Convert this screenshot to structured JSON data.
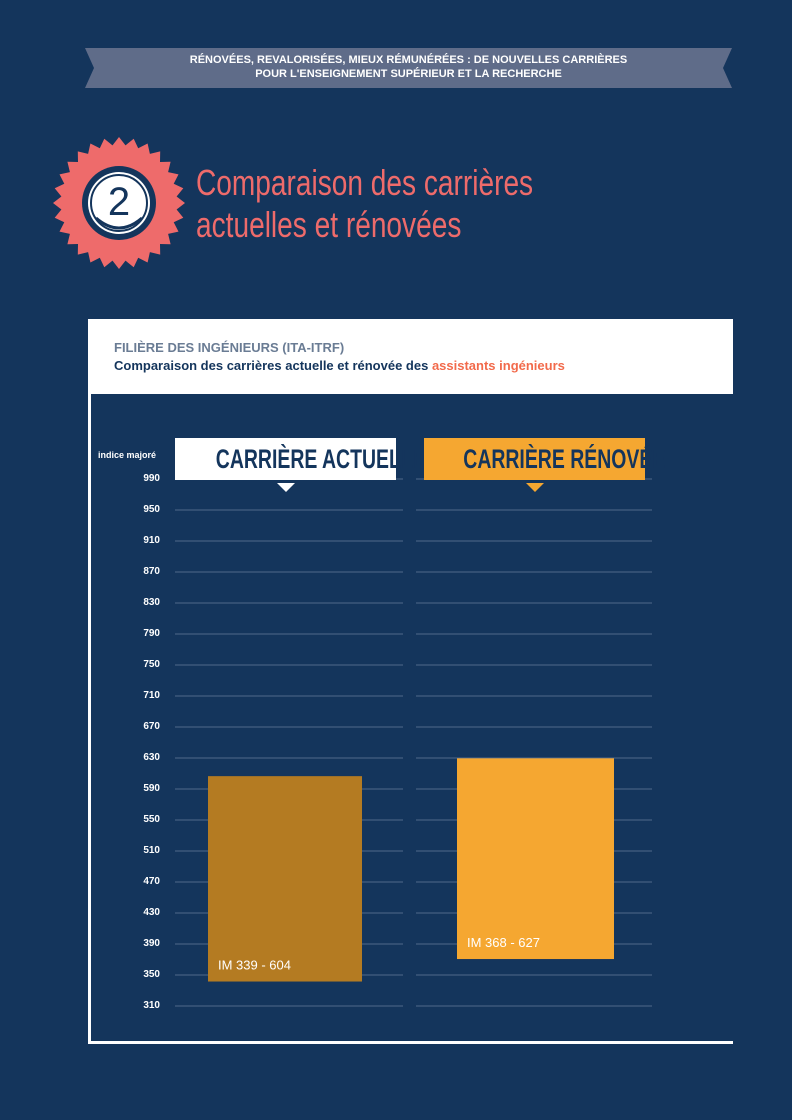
{
  "header": {
    "ribbon_line1": "RÉNOVÉES, REVALORISÉES, MIEUX RÉMUNÉRÉES : DE NOUVELLES CARRIÈRES",
    "ribbon_line2": "POUR L'ENSEIGNEMENT SUPÉRIEUR ET LA RECHERCHE"
  },
  "section": {
    "number": "2",
    "title_line1": "Comparaison des carrières",
    "title_line2": "actuelles et rénovées"
  },
  "card": {
    "subtitle": "FILIÈRE DES INGÉNIEURS (ITA-ITRF)",
    "description_prefix": "Comparaison des carrières actuelle et rénovée des ",
    "description_highlight": "assistants ingénieurs"
  },
  "colors": {
    "background": "#14355c",
    "ribbon": "#5f6c89",
    "accent_red": "#ee6b6b",
    "bar_actuelle": "#b47b22",
    "bar_renovee": "#f5a731",
    "highlight": "#f26a4b"
  },
  "chart_data": {
    "type": "bar",
    "ylabel": "indice majoré",
    "ylim": [
      310,
      990
    ],
    "yticks": [
      990,
      950,
      910,
      870,
      830,
      790,
      750,
      710,
      670,
      630,
      590,
      550,
      510,
      470,
      430,
      390,
      350,
      310
    ],
    "grid": true,
    "categories": [
      "CARRIÈRE ACTUELLE",
      "CARRIÈRE RÉNOVÉE"
    ],
    "series": [
      {
        "ranges": [
          [
            339,
            604
          ],
          [
            368,
            627
          ]
        ],
        "labels": [
          "IM 339 - 604",
          "IM 368 - 627"
        ]
      }
    ]
  }
}
